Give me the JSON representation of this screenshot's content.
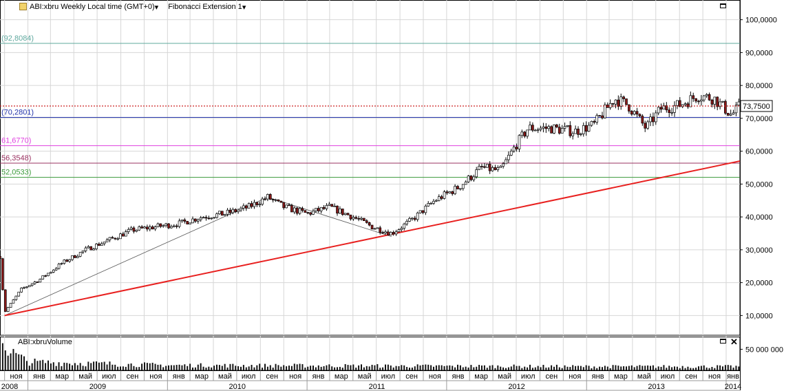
{
  "header": {
    "symbol_label": "ABI:xbru Weekly Local time (GMT+0)",
    "indicator_label": "Fibonacci Extension 1",
    "dropdown_glyph": "▾"
  },
  "volume_panel": {
    "title": "ABI:xbruVolume",
    "close_glyph": "✕"
  },
  "colors": {
    "up_candle": "#ffffff",
    "down_candle": "#8b1a1a",
    "trendline": "#e8201f",
    "last_price_line": "#cc2222",
    "fib_level_0": "#5fa89e",
    "fib_level_1": "#2233aa",
    "fib_level_2": "#e040e0",
    "fib_level_3": "#9a3060",
    "fib_level_4": "#3a9a3a"
  },
  "chart_data": {
    "type": "candlestick",
    "price_axis": {
      "ylim": [
        4,
        106
      ],
      "ticks": [
        10,
        20,
        30,
        40,
        50,
        60,
        70,
        80,
        90,
        100
      ],
      "tick_labels": [
        "10,0000",
        "20,0000",
        "30,0000",
        "40,0000",
        "50,0000",
        "60,0000",
        "70,0000",
        "80,0000",
        "90,0000",
        "100,0000"
      ]
    },
    "last_price": 73.75,
    "last_price_label": "73,7500",
    "fib_levels": [
      {
        "value": 92.8084,
        "label": "(92,8084)",
        "color_key": "fib_level_0"
      },
      {
        "value": 70.2801,
        "label": "(70,2801)",
        "color_key": "fib_level_1"
      },
      {
        "value": 61.677,
        "label": "61,6770)",
        "color_key": "fib_level_2"
      },
      {
        "value": 56.3548,
        "label": "56,3548)",
        "color_key": "fib_level_3"
      },
      {
        "value": 52.0533,
        "label": "52,0533)",
        "color_key": "fib_level_4"
      }
    ],
    "time_axis": {
      "months": [
        {
          "label": "ноя",
          "date": "2008-11-01"
        },
        {
          "label": "янв",
          "date": "2009-01-01"
        },
        {
          "label": "мар",
          "date": "2009-03-01"
        },
        {
          "label": "май",
          "date": "2009-05-01"
        },
        {
          "label": "июл",
          "date": "2009-07-01"
        },
        {
          "label": "сен",
          "date": "2009-09-01"
        },
        {
          "label": "ноя",
          "date": "2009-11-01"
        },
        {
          "label": "янв",
          "date": "2010-01-01"
        },
        {
          "label": "мар",
          "date": "2010-03-01"
        },
        {
          "label": "май",
          "date": "2010-05-01"
        },
        {
          "label": "июл",
          "date": "2010-07-01"
        },
        {
          "label": "сен",
          "date": "2010-09-01"
        },
        {
          "label": "ноя",
          "date": "2010-11-01"
        },
        {
          "label": "янв",
          "date": "2011-01-01"
        },
        {
          "label": "мар",
          "date": "2011-03-01"
        },
        {
          "label": "май",
          "date": "2011-05-01"
        },
        {
          "label": "июл",
          "date": "2011-07-01"
        },
        {
          "label": "сен",
          "date": "2011-09-01"
        },
        {
          "label": "ноя",
          "date": "2011-11-01"
        },
        {
          "label": "янв",
          "date": "2012-01-01"
        },
        {
          "label": "мар",
          "date": "2012-03-01"
        },
        {
          "label": "май",
          "date": "2012-05-01"
        },
        {
          "label": "июл",
          "date": "2012-07-01"
        },
        {
          "label": "сен",
          "date": "2012-09-01"
        },
        {
          "label": "ноя",
          "date": "2012-11-01"
        },
        {
          "label": "янв",
          "date": "2013-01-01"
        },
        {
          "label": "мар",
          "date": "2013-03-01"
        },
        {
          "label": "май",
          "date": "2013-05-01"
        },
        {
          "label": "июл",
          "date": "2013-07-01"
        },
        {
          "label": "сен",
          "date": "2013-09-01"
        },
        {
          "label": "ноя",
          "date": "2013-11-01"
        },
        {
          "label": "янв",
          "date": "2014-01-01"
        }
      ],
      "years": [
        {
          "label": "2008",
          "date": "2008-11-01"
        },
        {
          "label": "2009",
          "date": "2009-07-01"
        },
        {
          "label": "2010",
          "date": "2010-07-01"
        },
        {
          "label": "2011",
          "date": "2011-07-01"
        },
        {
          "label": "2012",
          "date": "2012-07-01"
        },
        {
          "label": "2013",
          "date": "2013-07-01"
        },
        {
          "label": "2014",
          "date": "2014-01-01"
        }
      ],
      "date_range": [
        "2008-10-20",
        "2014-02-06"
      ]
    },
    "price_path": [
      {
        "date": "2008-10-20",
        "price": 28
      },
      {
        "date": "2008-11-01",
        "price": 11
      },
      {
        "date": "2008-12-15",
        "price": 18
      },
      {
        "date": "2009-02-01",
        "price": 21
      },
      {
        "date": "2009-04-01",
        "price": 26
      },
      {
        "date": "2009-06-01",
        "price": 30
      },
      {
        "date": "2009-08-01",
        "price": 33
      },
      {
        "date": "2009-10-01",
        "price": 36
      },
      {
        "date": "2009-12-01",
        "price": 37
      },
      {
        "date": "2010-02-01",
        "price": 38
      },
      {
        "date": "2010-04-01",
        "price": 40
      },
      {
        "date": "2010-06-01",
        "price": 41
      },
      {
        "date": "2010-08-01",
        "price": 43
      },
      {
        "date": "2010-09-20",
        "price": 46
      },
      {
        "date": "2010-11-01",
        "price": 43
      },
      {
        "date": "2011-01-01",
        "price": 41
      },
      {
        "date": "2011-03-01",
        "price": 43
      },
      {
        "date": "2011-05-01",
        "price": 40
      },
      {
        "date": "2011-06-20",
        "price": 37
      },
      {
        "date": "2011-08-10",
        "price": 35
      },
      {
        "date": "2011-10-01",
        "price": 39
      },
      {
        "date": "2011-12-01",
        "price": 45
      },
      {
        "date": "2012-02-01",
        "price": 49
      },
      {
        "date": "2012-04-01",
        "price": 55
      },
      {
        "date": "2012-05-20",
        "price": 54
      },
      {
        "date": "2012-07-01",
        "price": 62
      },
      {
        "date": "2012-08-01",
        "price": 67
      },
      {
        "date": "2012-10-01",
        "price": 67
      },
      {
        "date": "2012-12-01",
        "price": 66
      },
      {
        "date": "2013-01-20",
        "price": 68
      },
      {
        "date": "2013-03-15",
        "price": 76
      },
      {
        "date": "2013-04-20",
        "price": 74
      },
      {
        "date": "2013-06-05",
        "price": 67
      },
      {
        "date": "2013-07-15",
        "price": 73
      },
      {
        "date": "2013-09-01",
        "price": 74
      },
      {
        "date": "2013-10-20",
        "price": 77
      },
      {
        "date": "2013-12-01",
        "price": 76
      },
      {
        "date": "2014-01-15",
        "price": 71
      },
      {
        "date": "2014-02-06",
        "price": 73.75
      }
    ],
    "trendline": {
      "from": {
        "date": "2008-11-01",
        "price": 10
      },
      "to": {
        "date": "2014-02-06",
        "price": 57
      }
    },
    "fib_anchor_points": [
      {
        "date": "2008-11-01",
        "price": 10
      },
      {
        "date": "2010-09-20",
        "price": 46
      },
      {
        "date": "2011-08-10",
        "price": 34
      }
    ],
    "volume_axis": {
      "ylim": [
        0,
        80000000
      ],
      "tick_value": 50000000,
      "tick_label": "50 000 000"
    },
    "volume_profile": [
      {
        "date": "2008-10-20",
        "volume": 76000000
      },
      {
        "date": "2008-11-15",
        "volume": 45000000
      },
      {
        "date": "2009-01-01",
        "volume": 20000000
      },
      {
        "date": "2010-01-01",
        "volume": 12000000
      },
      {
        "date": "2011-01-01",
        "volume": 11000000
      },
      {
        "date": "2012-01-01",
        "volume": 10000000
      },
      {
        "date": "2013-01-01",
        "volume": 9000000
      },
      {
        "date": "2014-02-06",
        "volume": 9000000
      }
    ]
  }
}
